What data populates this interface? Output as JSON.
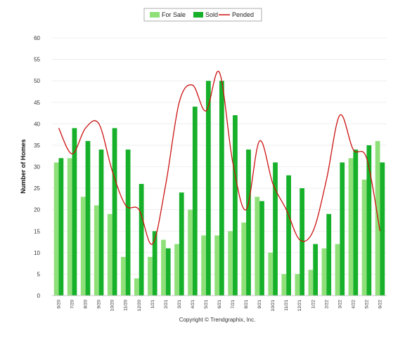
{
  "chart_data": {
    "type": "bar",
    "title": "",
    "xlabel": "",
    "ylabel": "Number of Homes",
    "ylim": [
      0,
      60
    ],
    "yticks": [
      0,
      5,
      10,
      15,
      20,
      25,
      30,
      35,
      40,
      45,
      50,
      55,
      60
    ],
    "grid": true,
    "legend_position": "top-center",
    "categories": [
      "6/20",
      "7/20",
      "8/20",
      "9/20",
      "10/20",
      "11/20",
      "12/20",
      "1/21",
      "2/21",
      "3/21",
      "4/21",
      "5/21",
      "6/21",
      "7/21",
      "8/21",
      "9/21",
      "10/21",
      "11/21",
      "12/21",
      "1/22",
      "2/22",
      "3/22",
      "4/22",
      "5/22",
      "6/22"
    ],
    "series": [
      {
        "name": "For Sale",
        "kind": "bar",
        "color": "#90e07a",
        "values": [
          31,
          32,
          23,
          21,
          19,
          9,
          4,
          9,
          13,
          12,
          20,
          14,
          14,
          15,
          17,
          23,
          10,
          5,
          5,
          6,
          11,
          12,
          32,
          27,
          36
        ]
      },
      {
        "name": "Sold",
        "kind": "bar",
        "color": "#16b02a",
        "values": [
          32,
          39,
          36,
          34,
          39,
          34,
          26,
          15,
          11,
          24,
          44,
          50,
          50,
          42,
          34,
          22,
          31,
          28,
          25,
          12,
          19,
          31,
          34,
          35,
          31
        ]
      },
      {
        "name": "Pended",
        "kind": "line",
        "color": "#cc1111",
        "values": [
          39,
          33,
          39,
          40,
          29,
          21,
          20,
          12,
          26,
          45,
          49,
          43,
          52,
          31,
          20,
          36,
          26,
          20,
          13,
          15,
          27,
          42,
          34,
          32,
          15
        ]
      }
    ]
  },
  "footer": {
    "copyright": "Copyright © Trendgraphix, Inc."
  }
}
